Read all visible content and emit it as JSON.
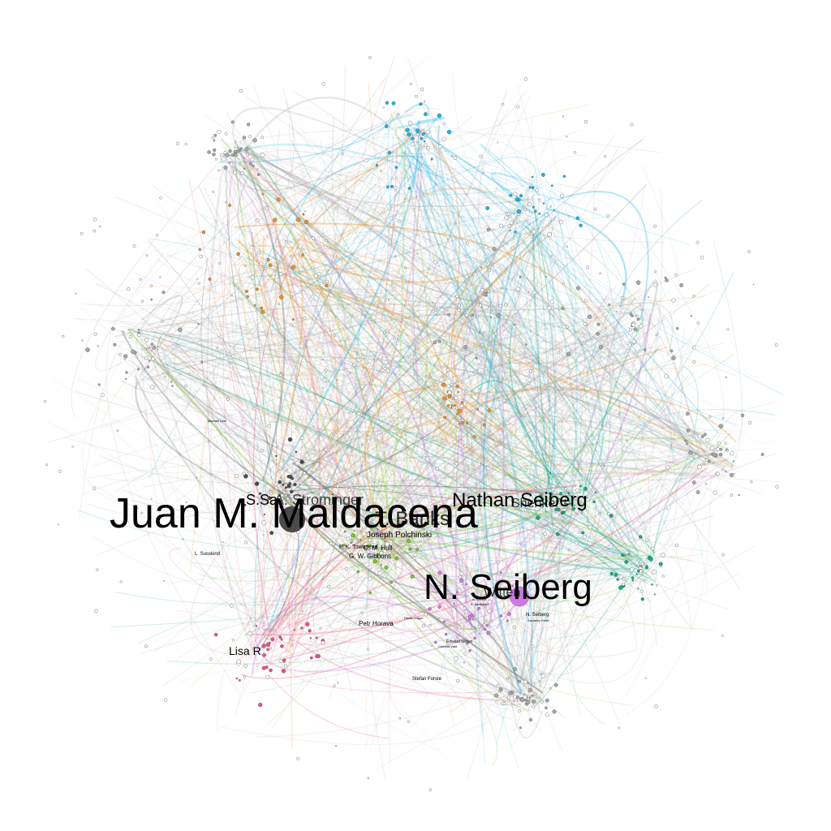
{
  "graph": {
    "colors": {
      "cyan": "#1fb3e8",
      "orange": "#f0901e",
      "green": "#16a884",
      "lime": "#7cc41a",
      "pink": "#f0507e",
      "violet": "#d07ae6",
      "dark": "#4a4a4a",
      "gray": "#a8a8a8",
      "node_fill": "#ffffff",
      "node_stroke": "#555555"
    },
    "labels": {
      "maldacena": "Juan M. Maldacena",
      "seiberg_n": "N. Seiberg",
      "nathan_seiberg": "Nathan Seiberg",
      "banks": "T. Banks",
      "shenker": "Shenker",
      "witten": "Witten",
      "s_shenker": "S. Shenker",
      "sa": "S.",
      "sa2": "Sa",
      "am": "A. Strominger",
      "polchinski": "Joseph Polchinski",
      "hull": "C. M. Hull",
      "gibbons": "G. W. Gibbons",
      "townsend": "P. K. Townsend",
      "susskind": "L. Susskind",
      "horava": "Petr Horava",
      "lisa": "Lisa R",
      "n_seiberg_small": "N. Seiberg",
      "sethi": "Savdeep Sethi",
      "forste": "Stefan Forste",
      "witten_e": "Edward Witten",
      "vafa": "Cumrun Vafa",
      "ooguri": "Hirosi Ooguri",
      "dine": "Michael Dine",
      "small1": "A. Klemm",
      "small2": "K. Intriligator"
    }
  }
}
